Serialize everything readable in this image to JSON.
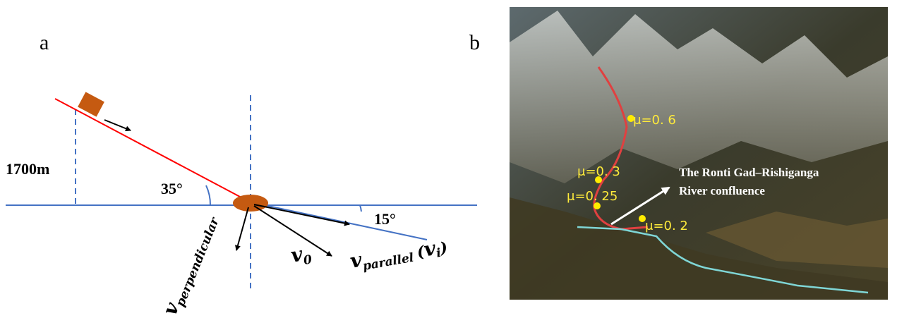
{
  "panel_a": {
    "label": "a",
    "height_label": "1700m",
    "slope_angle": "35°",
    "runout_angle": "15°",
    "v_perpendicular": {
      "symbol": "v",
      "subscript": "perpendicular"
    },
    "v_0": {
      "symbol": "v",
      "subscript": "0"
    },
    "v_parallel": {
      "symbol": "v",
      "subscript": "parallel",
      "paren_open": "(",
      "inner_symbol": "v",
      "inner_subscript": "i",
      "paren_close": ")"
    }
  },
  "panel_b": {
    "label": "b",
    "friction_labels": [
      "μ=0. 6",
      "μ=0. 3",
      "μ=0. 25",
      "μ=0. 2"
    ],
    "annotation": [
      "The Ronti Gad–Rishiganga",
      "River confluence"
    ]
  }
}
